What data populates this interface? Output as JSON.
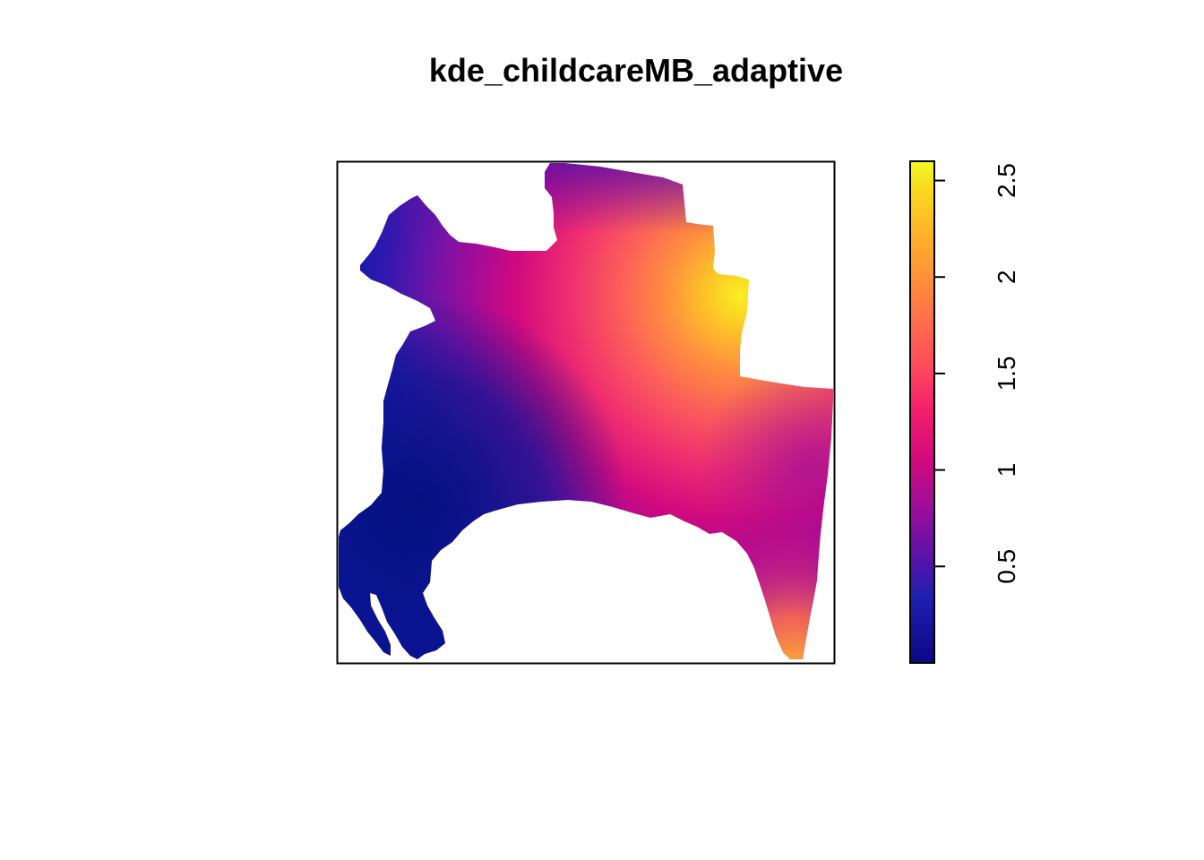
{
  "chart_data": {
    "type": "heatmap",
    "title": "kde_childcareMB_adaptive",
    "xlabel": "",
    "ylabel": "",
    "axes_shown": false,
    "map_frame": true,
    "legend": {
      "placement": "right",
      "orientation": "vertical",
      "range": [
        0.0,
        2.6
      ],
      "ticks": [
        {
          "value": 0.5,
          "label": "0.5"
        },
        {
          "value": 1.0,
          "label": "1"
        },
        {
          "value": 1.5,
          "label": "1.5"
        },
        {
          "value": 2.0,
          "label": "2"
        },
        {
          "value": 2.5,
          "label": "2.5"
        }
      ],
      "colormap": [
        {
          "value": 0.0,
          "color": "#0D0887"
        },
        {
          "value": 0.35,
          "color": "#1F20B0"
        },
        {
          "value": 0.55,
          "color": "#5C12A8"
        },
        {
          "value": 0.8,
          "color": "#9A0E9C"
        },
        {
          "value": 1.05,
          "color": "#D10A7E"
        },
        {
          "value": 1.3,
          "color": "#F21D6B"
        },
        {
          "value": 1.55,
          "color": "#FF4C5C"
        },
        {
          "value": 1.85,
          "color": "#FF7A45"
        },
        {
          "value": 2.15,
          "color": "#FFA72E"
        },
        {
          "value": 2.45,
          "color": "#F9D81E"
        },
        {
          "value": 2.6,
          "color": "#F0F921"
        }
      ]
    }
  }
}
